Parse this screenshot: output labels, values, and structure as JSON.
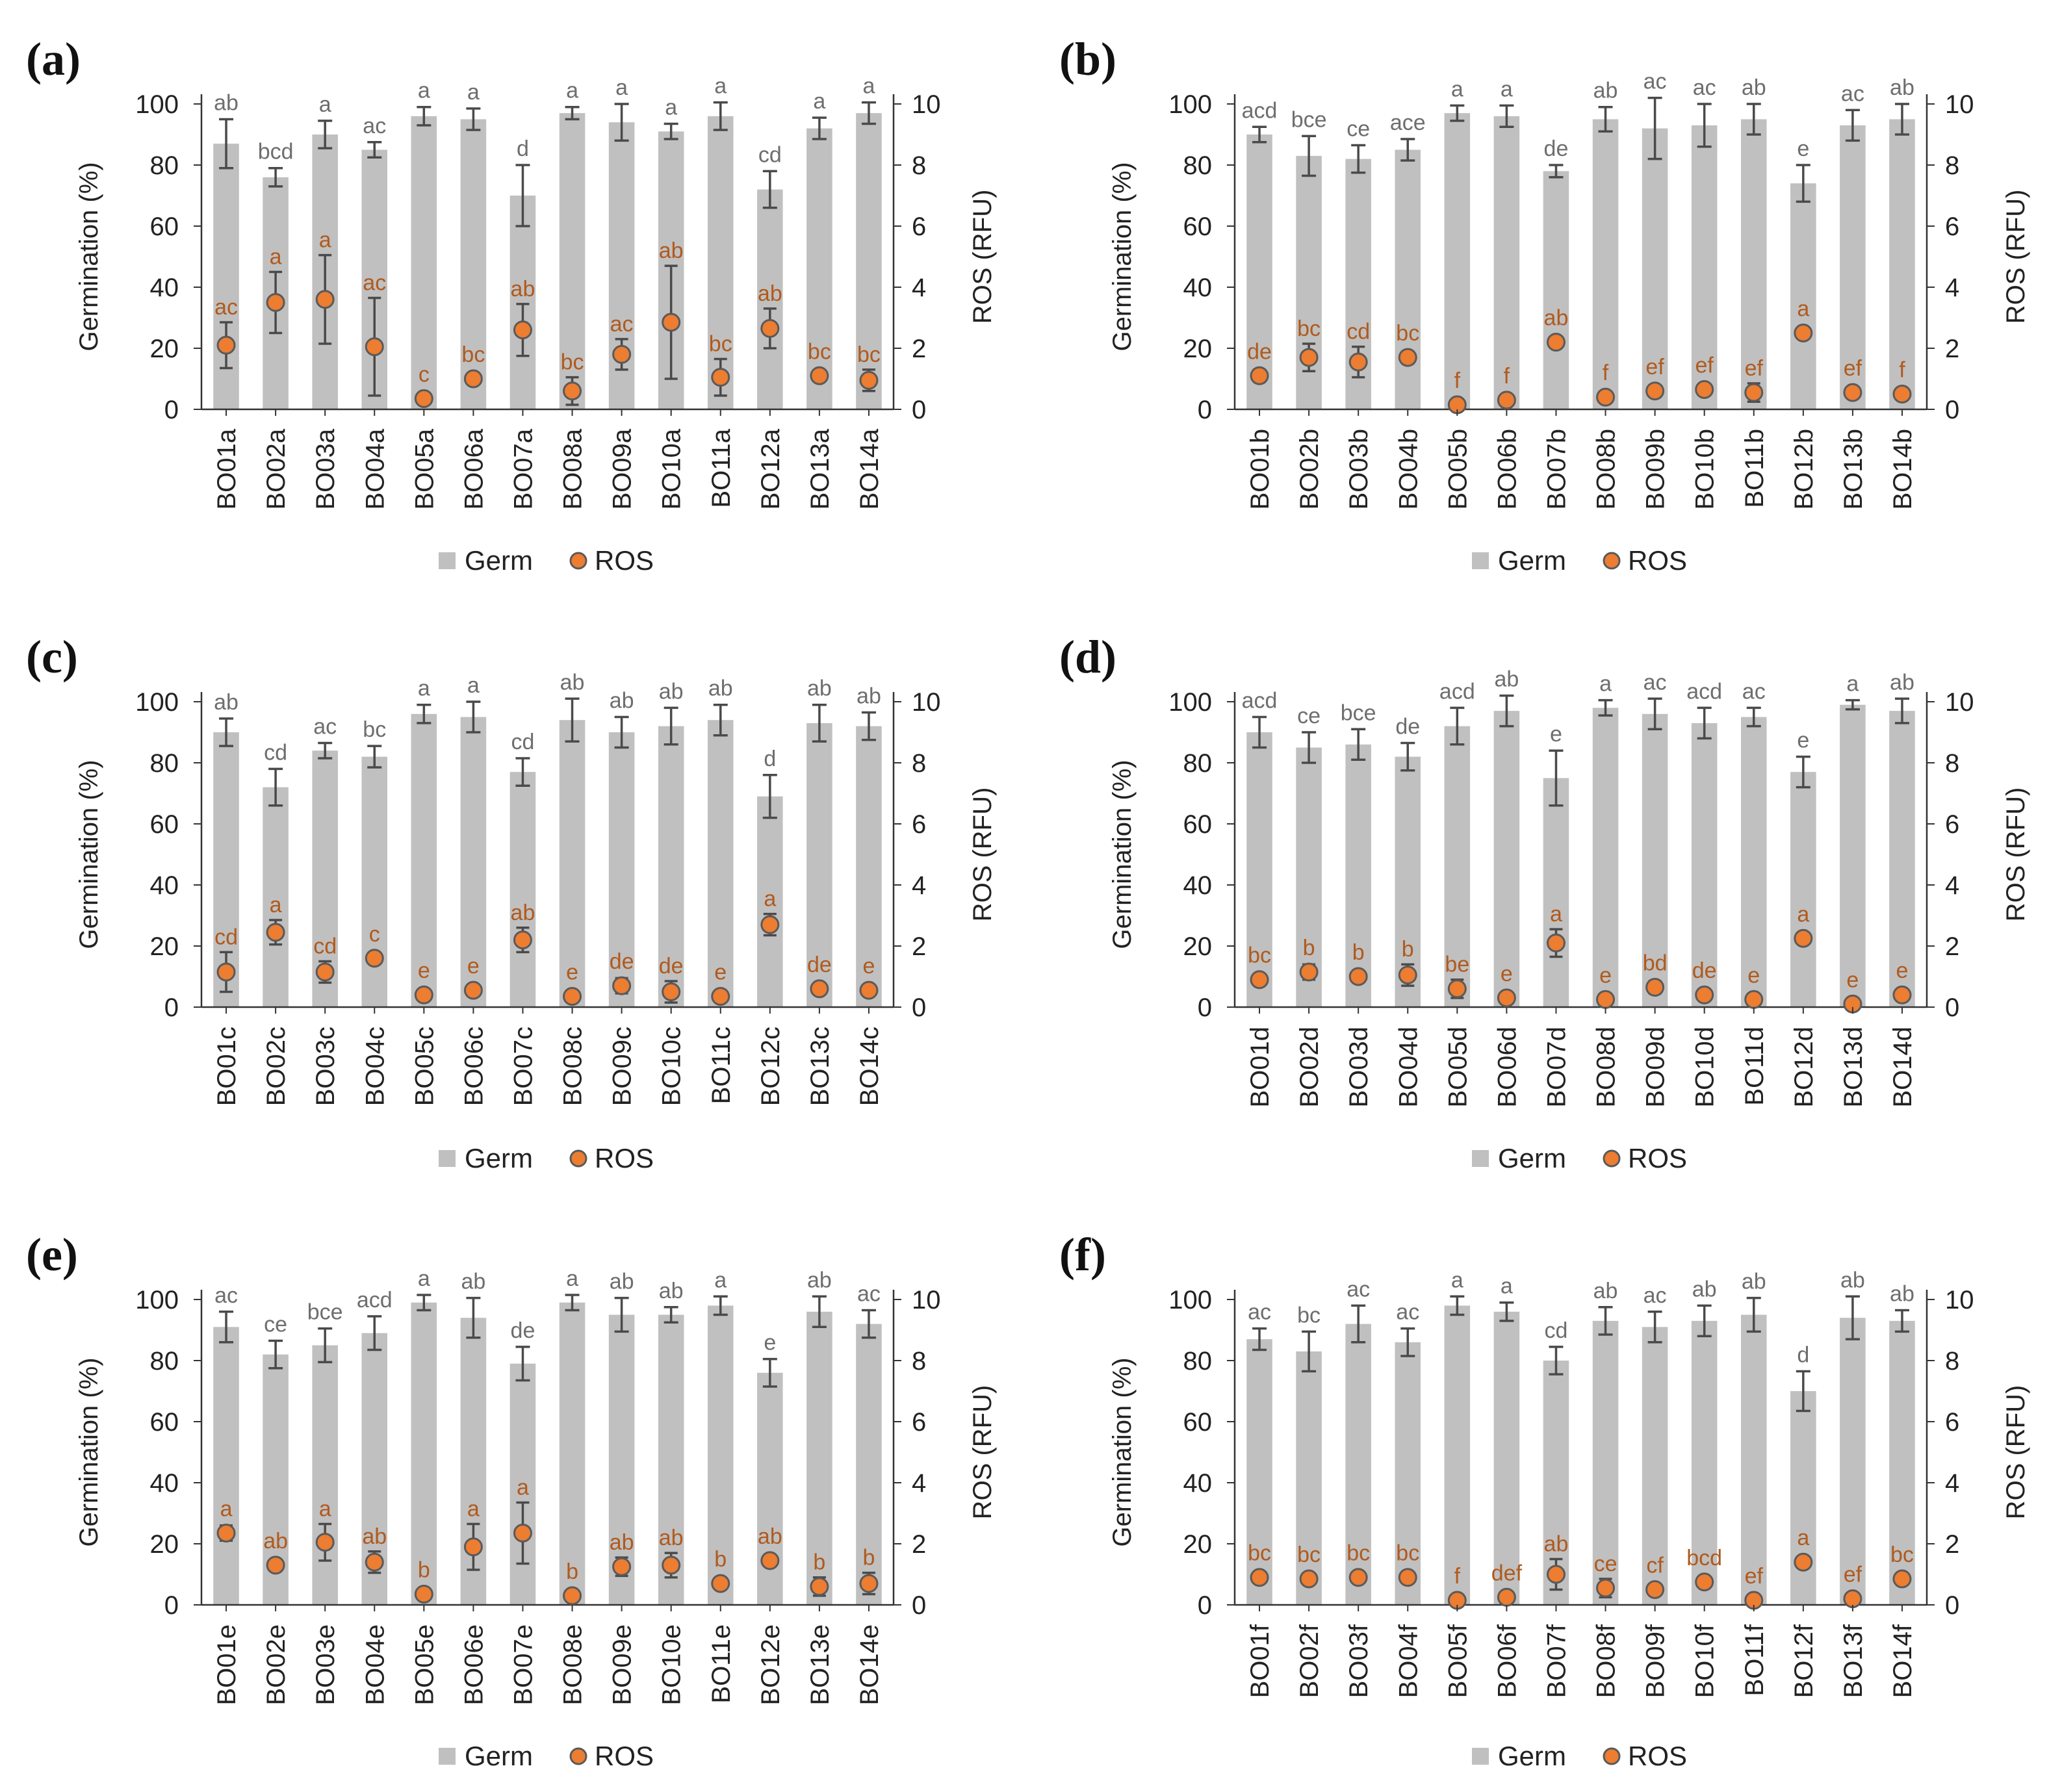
{
  "legend": {
    "germ_label": "Germ",
    "ros_label": "ROS"
  },
  "colors": {
    "bar": "#c0c0c0",
    "dot": "#ec7d31",
    "dot_stroke": "#5a5a5a",
    "ros_letter": "#b05a1e",
    "germ_letter": "#6e6e6e",
    "error": "#4a4a4a"
  },
  "chart_data": [
    {
      "panel": "(a)",
      "type": "bar+scatter",
      "categories": [
        "BO01a",
        "BO02a",
        "BO03a",
        "BO04a",
        "BO05a",
        "BO06a",
        "BO07a",
        "BO08a",
        "BO09a",
        "BO10a",
        "BO11a",
        "BO12a",
        "BO13a",
        "BO14a"
      ],
      "ylabel": "Germination (%)",
      "y2label": "ROS (RFU)",
      "ylim": [
        0,
        100
      ],
      "y2lim": [
        0,
        10
      ],
      "yticks": [
        "0",
        "20",
        "40",
        "60",
        "80",
        "100"
      ],
      "y2ticks": [
        "0",
        "2",
        "4",
        "6",
        "8",
        "10"
      ],
      "germ": [
        87,
        76,
        90,
        85,
        96,
        95,
        70,
        97,
        94,
        91,
        96,
        72,
        92,
        97
      ],
      "germ_err": [
        8,
        3,
        4.5,
        2.5,
        3,
        3.5,
        10,
        2,
        6,
        2.5,
        4.5,
        6,
        3.5,
        3.5
      ],
      "germ_letters": [
        "ab",
        "bcd",
        "a",
        "ac",
        "a",
        "a",
        "d",
        "a",
        "a",
        "a",
        "a",
        "cd",
        "a",
        "a"
      ],
      "ros": [
        2.1,
        3.5,
        3.6,
        2.05,
        0.35,
        1.0,
        2.6,
        0.6,
        1.8,
        2.85,
        1.05,
        2.65,
        1.1,
        0.95
      ],
      "ros_err": [
        0.75,
        1.0,
        1.45,
        1.6,
        0.1,
        0.1,
        0.85,
        0.45,
        0.5,
        1.85,
        0.6,
        0.65,
        0.15,
        0.35
      ],
      "ros_letters": [
        "ac",
        "a",
        "a",
        "ac",
        "c",
        "bc",
        "ab",
        "bc",
        "ac",
        "ab",
        "bc",
        "ab",
        "bc",
        "bc"
      ]
    },
    {
      "panel": "(b)",
      "type": "bar+scatter",
      "categories": [
        "BO01b",
        "BO02b",
        "BO03b",
        "BO04b",
        "BO05b",
        "BO06b",
        "BO07b",
        "BO08b",
        "BO09b",
        "BO10b",
        "BO11b",
        "BO12b",
        "BO13b",
        "BO14b"
      ],
      "ylabel": "Germination (%)",
      "y2label": "ROS (RFU)",
      "ylim": [
        0,
        100
      ],
      "y2lim": [
        0,
        10
      ],
      "yticks": [
        "0",
        "20",
        "40",
        "60",
        "80",
        "100"
      ],
      "y2ticks": [
        "0",
        "2",
        "4",
        "6",
        "8",
        "10"
      ],
      "germ": [
        90,
        83,
        82,
        85,
        97,
        96,
        78,
        95,
        92,
        93,
        95,
        74,
        93,
        95
      ],
      "germ_err": [
        2.5,
        6.5,
        4.5,
        3.5,
        2.5,
        3.5,
        2,
        4,
        10,
        7,
        5,
        6,
        5,
        5
      ],
      "germ_letters": [
        "acd",
        "bce",
        "ce",
        "ace",
        "a",
        "a",
        "de",
        "ab",
        "ac",
        "ac",
        "ab",
        "e",
        "ac",
        "ab"
      ],
      "ros": [
        1.1,
        1.7,
        1.55,
        1.7,
        0.15,
        0.3,
        2.2,
        0.4,
        0.6,
        0.65,
        0.55,
        2.5,
        0.55,
        0.5
      ],
      "ros_err": [
        0.2,
        0.45,
        0.5,
        0.2,
        0.1,
        0.1,
        0.15,
        0.1,
        0.1,
        0.1,
        0.3,
        0.1,
        0.15,
        0.1
      ],
      "ros_letters": [
        "de",
        "bc",
        "cd",
        "bc",
        "f",
        "f",
        "ab",
        "f",
        "ef",
        "ef",
        "ef",
        "a",
        "ef",
        "f"
      ]
    },
    {
      "panel": "(c)",
      "type": "bar+scatter",
      "categories": [
        "BO01c",
        "BO02c",
        "BO03c",
        "BO04c",
        "BO05c",
        "BO06c",
        "BO07c",
        "BO08c",
        "BO09c",
        "BO10c",
        "BO11c",
        "BO12c",
        "BO13c",
        "BO14c"
      ],
      "ylabel": "Germination (%)",
      "y2label": "ROS (RFU)",
      "ylim": [
        0,
        100
      ],
      "y2lim": [
        0,
        10
      ],
      "yticks": [
        "0",
        "20",
        "40",
        "60",
        "80",
        "100"
      ],
      "y2ticks": [
        "0",
        "2",
        "4",
        "6",
        "8",
        "10"
      ],
      "germ": [
        90,
        72,
        84,
        82,
        96,
        95,
        77,
        94,
        90,
        92,
        94,
        69,
        93,
        92
      ],
      "germ_err": [
        4.5,
        6,
        2.5,
        3.5,
        3,
        5,
        4.5,
        7,
        5,
        6,
        5,
        7,
        6,
        4.5
      ],
      "germ_letters": [
        "ab",
        "cd",
        "ac",
        "bc",
        "a",
        "a",
        "cd",
        "ab",
        "ab",
        "ab",
        "ab",
        "d",
        "ab",
        "ab"
      ],
      "ros": [
        1.15,
        2.45,
        1.15,
        1.6,
        0.4,
        0.55,
        2.2,
        0.35,
        0.7,
        0.5,
        0.35,
        2.7,
        0.6,
        0.55
      ],
      "ros_err": [
        0.65,
        0.4,
        0.35,
        0.1,
        0.1,
        0.1,
        0.4,
        0.1,
        0.25,
        0.35,
        0.1,
        0.35,
        0.1,
        0.1
      ],
      "ros_letters": [
        "cd",
        "a",
        "cd",
        "c",
        "e",
        "e",
        "ab",
        "e",
        "de",
        "de",
        "e",
        "a",
        "de",
        "e"
      ]
    },
    {
      "panel": "(d)",
      "type": "bar+scatter",
      "categories": [
        "BO01d",
        "BO02d",
        "BO03d",
        "BO04d",
        "BO05d",
        "BO06d",
        "BO07d",
        "BO08d",
        "BO09d",
        "BO10d",
        "BO11d",
        "BO12d",
        "BO13d",
        "BO14d"
      ],
      "ylabel": "Germination (%)",
      "y2label": "ROS (RFU)",
      "ylim": [
        0,
        100
      ],
      "y2lim": [
        0,
        10
      ],
      "yticks": [
        "0",
        "20",
        "40",
        "60",
        "80",
        "100"
      ],
      "y2ticks": [
        "0",
        "2",
        "4",
        "6",
        "8",
        "10"
      ],
      "germ": [
        90,
        85,
        86,
        82,
        92,
        97,
        75,
        98,
        96,
        93,
        95,
        77,
        99,
        97
      ],
      "germ_err": [
        5,
        5,
        5,
        4.5,
        6,
        5,
        9,
        2.5,
        5,
        5,
        3,
        5,
        1.5,
        4
      ],
      "germ_letters": [
        "acd",
        "ce",
        "bce",
        "de",
        "acd",
        "ab",
        "e",
        "a",
        "ac",
        "acd",
        "ac",
        "e",
        "a",
        "ab"
      ],
      "ros": [
        0.9,
        1.15,
        1.0,
        1.05,
        0.6,
        0.3,
        2.1,
        0.25,
        0.65,
        0.4,
        0.25,
        2.25,
        0.1,
        0.4
      ],
      "ros_err": [
        0.1,
        0.25,
        0.1,
        0.35,
        0.3,
        0.1,
        0.45,
        0.1,
        0.2,
        0.1,
        0.1,
        0.1,
        0.1,
        0.1
      ],
      "ros_letters": [
        "bc",
        "b",
        "b",
        "b",
        "be",
        "e",
        "a",
        "e",
        "bd",
        "de",
        "e",
        "a",
        "e",
        "e"
      ]
    },
    {
      "panel": "(e)",
      "type": "bar+scatter",
      "categories": [
        "BO01e",
        "BO02e",
        "BO03e",
        "BO04e",
        "BO05e",
        "BO06e",
        "BO07e",
        "BO08e",
        "BO09e",
        "BO10e",
        "BO11e",
        "BO12e",
        "BO13e",
        "BO14e"
      ],
      "ylabel": "Germination (%)",
      "y2label": "ROS (RFU)",
      "ylim": [
        0,
        100
      ],
      "y2lim": [
        0,
        10
      ],
      "yticks": [
        "0",
        "20",
        "40",
        "60",
        "80",
        "100"
      ],
      "y2ticks": [
        "0",
        "2",
        "4",
        "6",
        "8",
        "10"
      ],
      "germ": [
        91,
        82,
        85,
        89,
        99,
        94,
        79,
        99,
        95,
        95,
        98,
        76,
        96,
        92
      ],
      "germ_err": [
        5,
        4.5,
        5.5,
        5.5,
        2.5,
        6.5,
        5.5,
        2.5,
        5.5,
        2.5,
        3,
        4.5,
        5,
        4.5
      ],
      "germ_letters": [
        "ac",
        "ce",
        "bce",
        "acd",
        "a",
        "ab",
        "de",
        "a",
        "ab",
        "ab",
        "a",
        "e",
        "ab",
        "ac"
      ],
      "ros": [
        2.35,
        1.3,
        2.05,
        1.4,
        0.35,
        1.9,
        2.35,
        0.3,
        1.25,
        1.3,
        0.7,
        1.45,
        0.6,
        0.7
      ],
      "ros_err": [
        0.25,
        0.1,
        0.6,
        0.35,
        0.1,
        0.75,
        1.0,
        0.1,
        0.3,
        0.4,
        0.1,
        0.1,
        0.3,
        0.35
      ],
      "ros_letters": [
        "a",
        "ab",
        "a",
        "ab",
        "b",
        "a",
        "a",
        "b",
        "ab",
        "ab",
        "b",
        "ab",
        "b",
        "b"
      ]
    },
    {
      "panel": "(f)",
      "type": "bar+scatter",
      "categories": [
        "BO01f",
        "BO02f",
        "BO03f",
        "BO04f",
        "BO05f",
        "BO06f",
        "BO07f",
        "BO08f",
        "BO09f",
        "BO10f",
        "BO11f",
        "BO12f",
        "BO13f",
        "BO14f"
      ],
      "ylabel": "Germination (%)",
      "y2label": "ROS (RFU)",
      "ylim": [
        0,
        100
      ],
      "y2lim": [
        0,
        10
      ],
      "yticks": [
        "0",
        "20",
        "40",
        "60",
        "80",
        "100"
      ],
      "y2ticks": [
        "0",
        "2",
        "4",
        "6",
        "8",
        "10"
      ],
      "germ": [
        87,
        83,
        92,
        86,
        98,
        96,
        80,
        93,
        91,
        93,
        95,
        70,
        94,
        93
      ],
      "germ_err": [
        3.5,
        6.5,
        6,
        4.5,
        3,
        3,
        4.5,
        4.5,
        5,
        5,
        5.5,
        6.5,
        7,
        3.5
      ],
      "germ_letters": [
        "ac",
        "bc",
        "ac",
        "ac",
        "a",
        "a",
        "cd",
        "ab",
        "ac",
        "ab",
        "ab",
        "d",
        "ab",
        "ab"
      ],
      "ros": [
        0.9,
        0.85,
        0.9,
        0.9,
        0.15,
        0.25,
        1.0,
        0.55,
        0.5,
        0.75,
        0.15,
        1.4,
        0.2,
        0.85
      ],
      "ros_err": [
        0.1,
        0.1,
        0.1,
        0.1,
        0.1,
        0.1,
        0.5,
        0.3,
        0.1,
        0.1,
        0.1,
        0.1,
        0.1,
        0.1
      ],
      "ros_letters": [
        "bc",
        "bc",
        "bc",
        "bc",
        "f",
        "def",
        "ab",
        "ce",
        "cf",
        "bcd",
        "ef",
        "a",
        "ef",
        "bc"
      ]
    }
  ]
}
